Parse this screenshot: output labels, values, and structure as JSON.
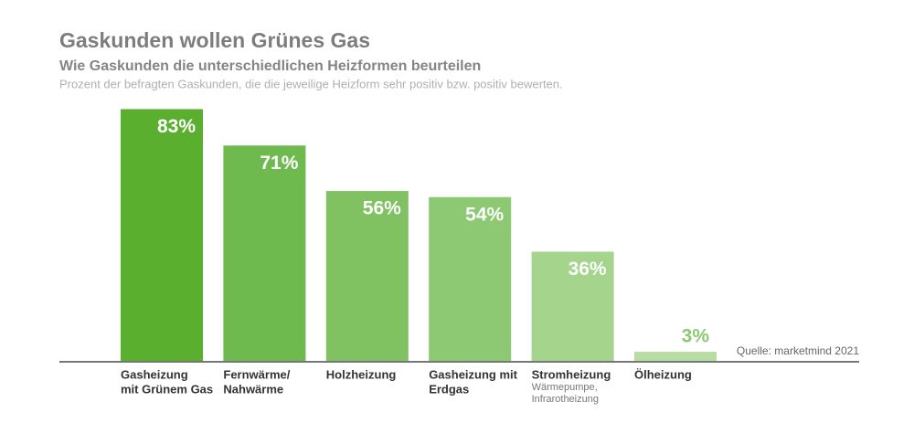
{
  "chart_data": {
    "type": "bar",
    "title": "Gaskunden wollen Grünes Gas",
    "subtitle": "Wie Gaskunden die unterschiedlichen Heizformen beurteilen",
    "note": "Prozent der befragten Gaskunden, die die jeweilige Heizform sehr positiv bzw. positiv bewerten.",
    "source": "Quelle: marketmind 2021",
    "categories": [
      [
        "Gasheizung",
        "mit Grünem Gas"
      ],
      [
        "Fernwärme/",
        "Nahwärme"
      ],
      [
        "Holzheizung"
      ],
      [
        "Gasheizung mit",
        "Erdgas"
      ],
      [
        "Stromheizung"
      ],
      [
        "Ölheizung"
      ]
    ],
    "category_notes": [
      null,
      null,
      null,
      null,
      [
        "Wärmepumpe,",
        "Infrarotheizung"
      ],
      null
    ],
    "values": [
      83,
      71,
      56,
      54,
      36,
      3
    ],
    "value_labels": [
      "83%",
      "71%",
      "56%",
      "54%",
      "36%",
      "3%"
    ],
    "colors": [
      "#5aaf2f",
      "#6fba4f",
      "#80c162",
      "#8dc872",
      "#a5d58d",
      "#b7dda3"
    ],
    "ylim": [
      0,
      100
    ]
  }
}
